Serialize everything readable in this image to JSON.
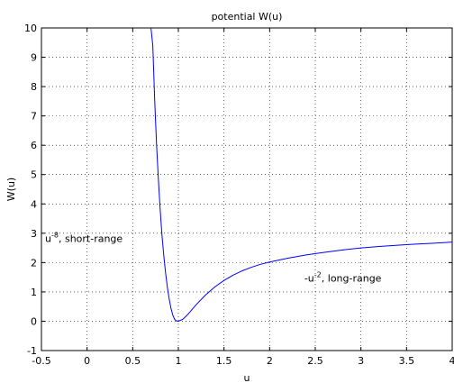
{
  "chart_data": {
    "type": "line",
    "title": "potential W(u)",
    "xlabel": "u",
    "ylabel": "W(u)",
    "xlim": [
      -0.5,
      4
    ],
    "ylim": [
      -1,
      10
    ],
    "xticks": [
      "-0.5",
      "0",
      "0.5",
      "1",
      "1.5",
      "2",
      "2.5",
      "3",
      "3.5",
      "4"
    ],
    "yticks": [
      "-1",
      "0",
      "1",
      "2",
      "3",
      "4",
      "5",
      "6",
      "7",
      "8",
      "9",
      "10"
    ],
    "grid": true,
    "line_color": "#0000ff",
    "series": [
      {
        "x": [
          0.7,
          0.72,
          0.74,
          0.76,
          0.78,
          0.8,
          0.82,
          0.84,
          0.86,
          0.88,
          0.9,
          0.92,
          0.94,
          0.96,
          0.98,
          1.0,
          1.05,
          1.1,
          1.15,
          1.2,
          1.3,
          1.4,
          1.5,
          1.6,
          1.7,
          1.8,
          1.9,
          2.0,
          2.2,
          2.4,
          2.6,
          2.8,
          3.0,
          3.2,
          3.4,
          3.6,
          3.8,
          4.0
        ],
        "y": [
          10.0,
          9.4,
          7.6,
          6.1,
          4.9,
          3.85,
          2.95,
          2.25,
          1.65,
          1.15,
          0.75,
          0.43,
          0.2,
          0.06,
          0.01,
          0.0,
          0.07,
          0.22,
          0.4,
          0.58,
          0.9,
          1.17,
          1.39,
          1.57,
          1.72,
          1.84,
          1.94,
          2.02,
          2.15,
          2.26,
          2.35,
          2.43,
          2.5,
          2.55,
          2.59,
          2.63,
          2.66,
          2.7
        ]
      }
    ],
    "annotations": [
      {
        "base": "u",
        "sup": "-8",
        "rest": ", short-range"
      },
      {
        "base": "-u",
        "sup": "-2",
        "rest": ", long-range"
      }
    ]
  }
}
